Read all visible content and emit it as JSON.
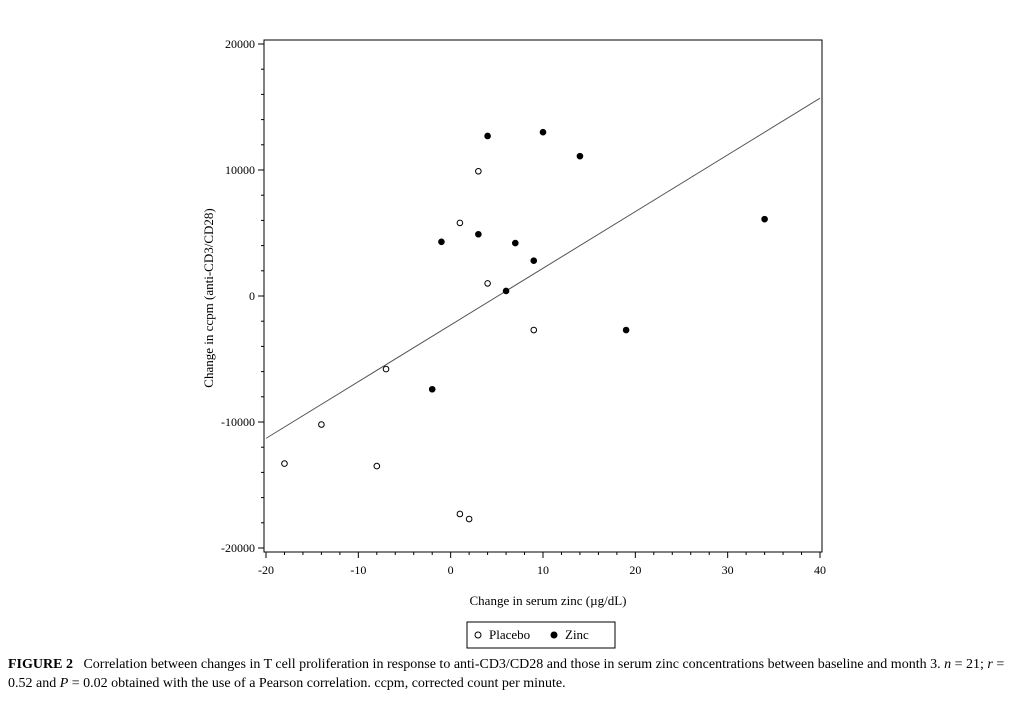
{
  "page": {
    "top_snippet": "",
    "caption_label": "FIGURE 2",
    "caption_text_1": "Correlation between changes in T cell proliferation in response to anti-CD3/CD28 and those in serum zinc concentrations between baseline and month 3.",
    "caption_n": "n",
    "caption_text_2": " = 21; ",
    "caption_r": "r",
    "caption_text_3": " = 0.52 and ",
    "caption_p": "P",
    "caption_text_4": " = 0.02 obtained with the use of a Pearson correlation. ccpm, corrected count per minute."
  },
  "chart_data": {
    "type": "scatter",
    "title": "",
    "xlabel": "Change in serum zinc (µg/dL)",
    "ylabel": "Change in ccpm (anti-CD3/CD28)",
    "xlim": [
      -20,
      40
    ],
    "ylim": [
      -20000,
      20000
    ],
    "xticks": [
      -20,
      -10,
      0,
      10,
      20,
      30,
      40
    ],
    "yticks": [
      -20000,
      -10000,
      0,
      10000,
      20000
    ],
    "legend_position": "bottom-center",
    "series": [
      {
        "name": "Placebo",
        "marker": "open-circle",
        "points": [
          {
            "x": -18,
            "y": -13300
          },
          {
            "x": -14,
            "y": -10200
          },
          {
            "x": -8,
            "y": -13500
          },
          {
            "x": -7,
            "y": -5800
          },
          {
            "x": 1,
            "y": 5800
          },
          {
            "x": 1,
            "y": -17300
          },
          {
            "x": 2,
            "y": -17700
          },
          {
            "x": 3,
            "y": 9900
          },
          {
            "x": 4,
            "y": 1000
          },
          {
            "x": 9,
            "y": -2700
          }
        ]
      },
      {
        "name": "Zinc",
        "marker": "filled-circle",
        "points": [
          {
            "x": -2,
            "y": -7400
          },
          {
            "x": -1,
            "y": 4300
          },
          {
            "x": 3,
            "y": 4900
          },
          {
            "x": 4,
            "y": 12700
          },
          {
            "x": 6,
            "y": 400
          },
          {
            "x": 7,
            "y": 4200
          },
          {
            "x": 9,
            "y": 2800
          },
          {
            "x": 10,
            "y": 13000
          },
          {
            "x": 14,
            "y": 11100
          },
          {
            "x": 19,
            "y": -2700
          },
          {
            "x": 34,
            "y": 6100
          }
        ]
      }
    ],
    "regression_line": {
      "x": [
        -20,
        40
      ],
      "y": [
        -11300,
        15700
      ]
    }
  }
}
